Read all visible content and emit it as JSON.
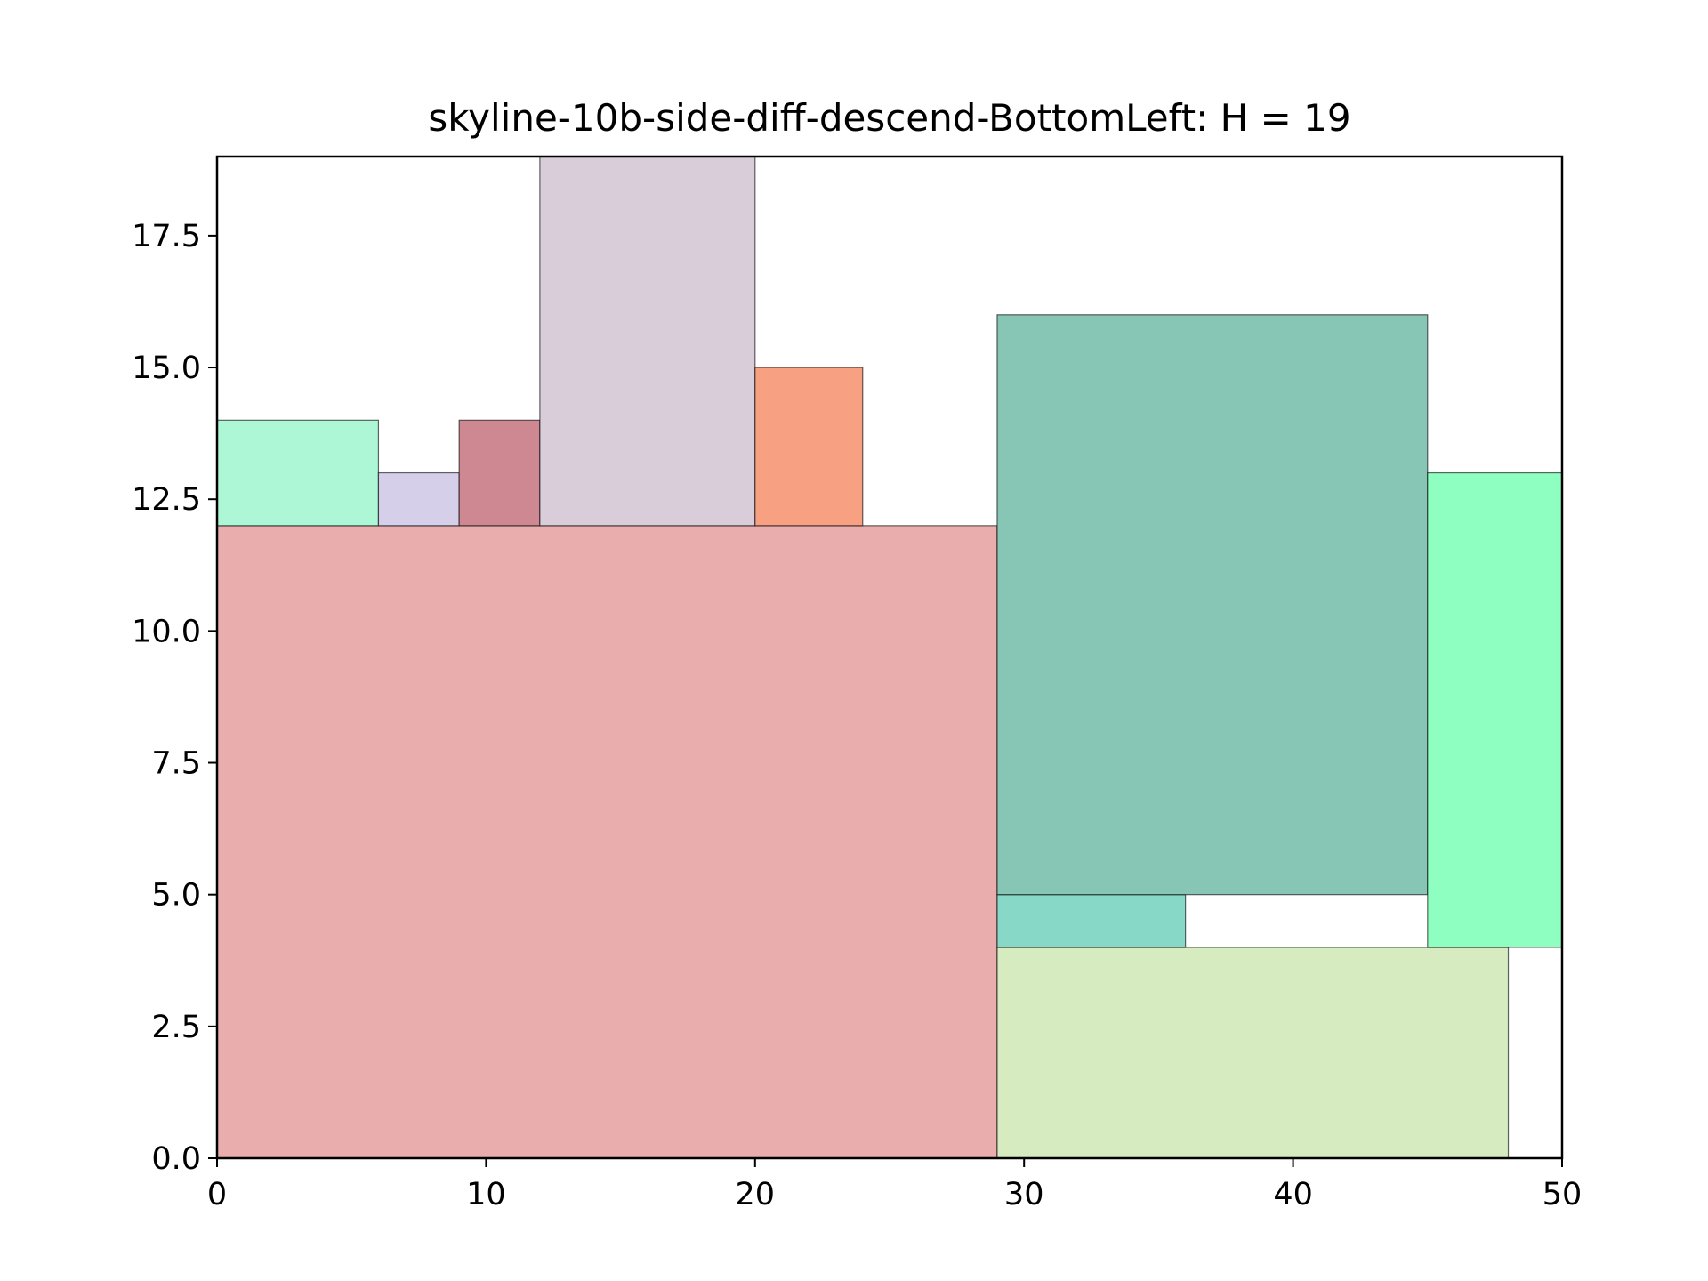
{
  "chart_data": {
    "type": "rectangle-packing",
    "title": "skyline-10b-side-diff-descend-BottomLeft: H = 19",
    "xlim": [
      0,
      50
    ],
    "ylim": [
      0,
      19
    ],
    "xticks": [
      "0",
      "10",
      "20",
      "30",
      "40",
      "50"
    ],
    "xtick_values": [
      0,
      10,
      20,
      30,
      40,
      50
    ],
    "yticks": [
      "0.0",
      "2.5",
      "5.0",
      "7.5",
      "10.0",
      "12.5",
      "15.0",
      "17.5"
    ],
    "ytick_values": [
      0,
      2.5,
      5,
      7.5,
      10,
      12.5,
      15,
      17.5
    ],
    "grid": false,
    "rectangles": [
      {
        "x": 0,
        "y": 0,
        "w": 29,
        "h": 12,
        "color": "#e9adad"
      },
      {
        "x": 29,
        "y": 0,
        "w": 19,
        "h": 4,
        "color": "#d7ebc0"
      },
      {
        "x": 29,
        "y": 4,
        "w": 7,
        "h": 1,
        "color": "#88d8c8"
      },
      {
        "x": 29,
        "y": 5,
        "w": 16,
        "h": 11,
        "color": "#87c5b5"
      },
      {
        "x": 45,
        "y": 4,
        "w": 5,
        "h": 9,
        "color": "#8effc0"
      },
      {
        "x": 0,
        "y": 12,
        "w": 6,
        "h": 2,
        "color": "#adf7d7"
      },
      {
        "x": 6,
        "y": 12,
        "w": 3,
        "h": 1,
        "color": "#d5cfea"
      },
      {
        "x": 9,
        "y": 12,
        "w": 3,
        "h": 2,
        "color": "#cd8891"
      },
      {
        "x": 12,
        "y": 12,
        "w": 8,
        "h": 7,
        "color": "#dacdda"
      },
      {
        "x": 20,
        "y": 12,
        "w": 4,
        "h": 3,
        "color": "#f7a182"
      }
    ]
  }
}
